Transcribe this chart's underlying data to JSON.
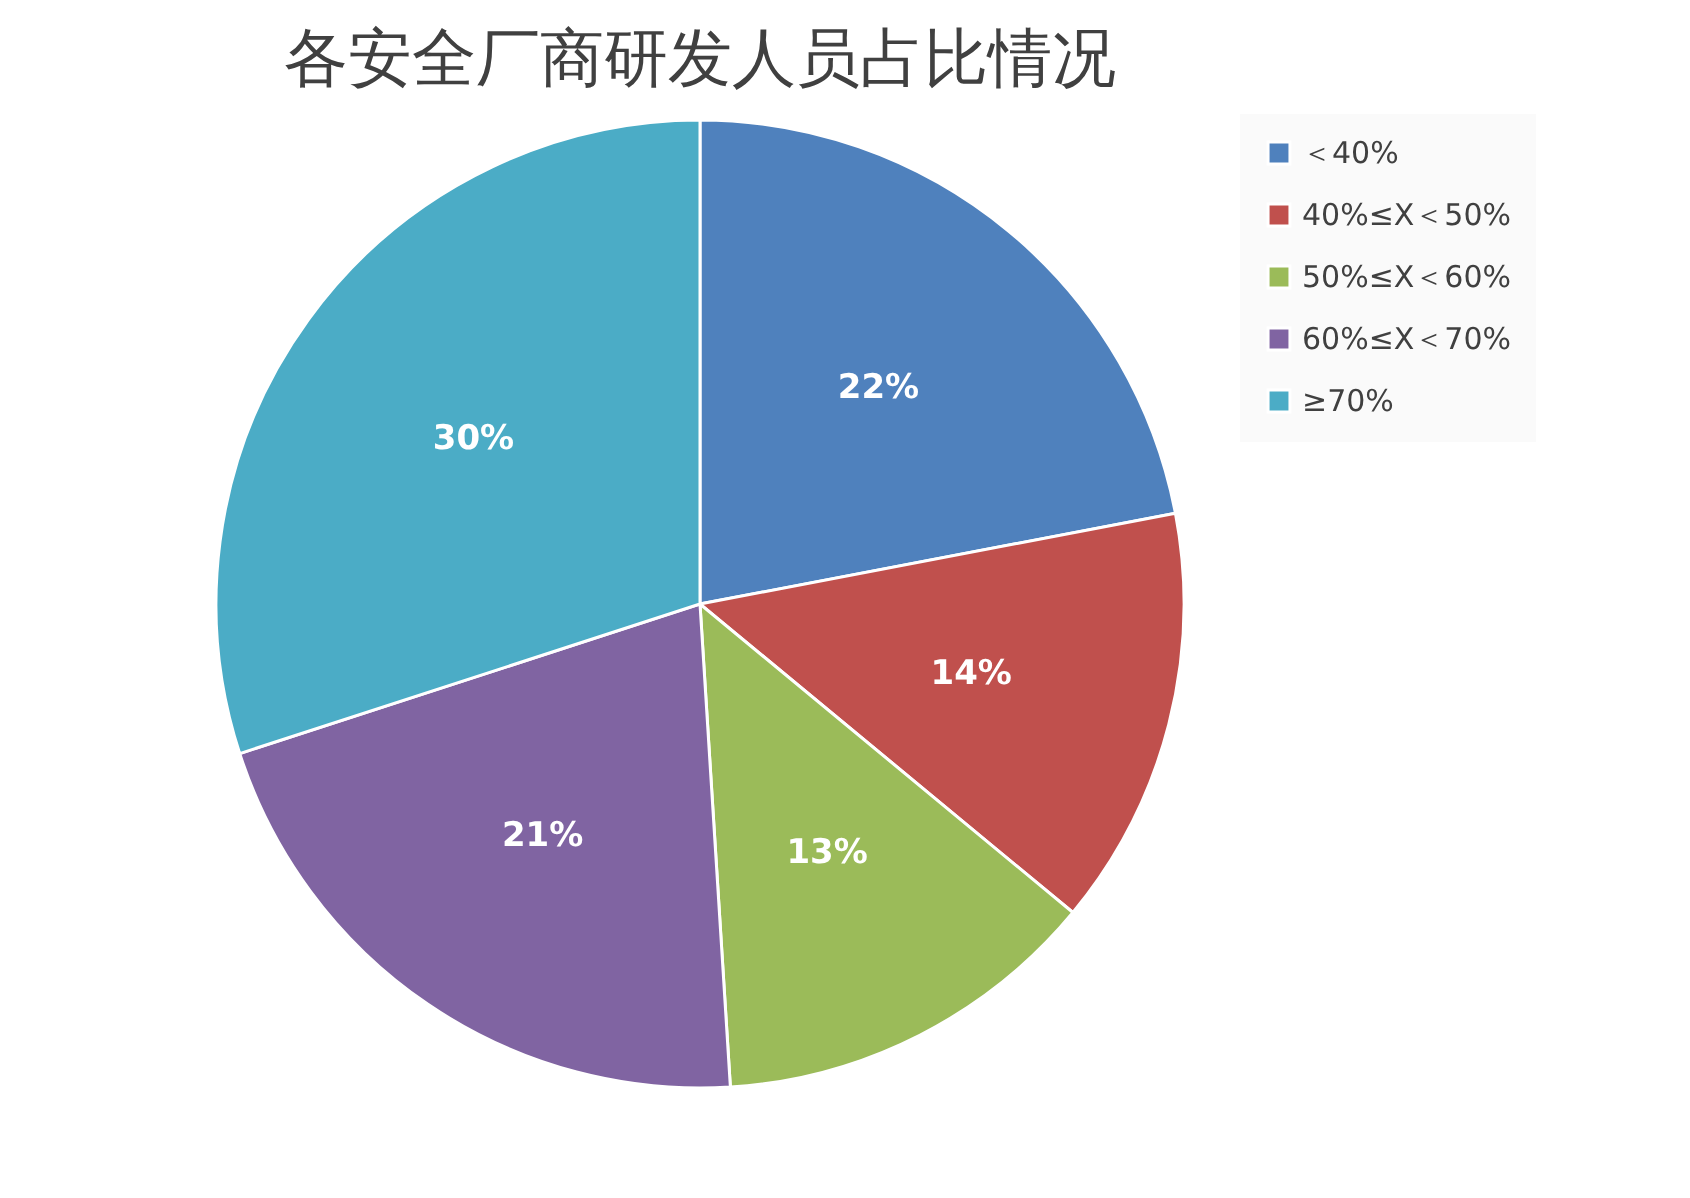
{
  "chart_data": {
    "type": "pie",
    "title": "各安全厂商研发人员占比情况",
    "categories": [
      "＜40%",
      "40%≤X＜50%",
      "50%≤X＜60%",
      "60%≤X＜70%",
      "≥70%"
    ],
    "values": [
      22,
      14,
      13,
      21,
      30
    ],
    "colors": [
      "#4f81bd",
      "#c0504d",
      "#9bbb59",
      "#8064a2",
      "#4bacc6"
    ],
    "value_labels": [
      "22%",
      "14%",
      "13%",
      "21%",
      "30%"
    ],
    "legend": "right"
  }
}
